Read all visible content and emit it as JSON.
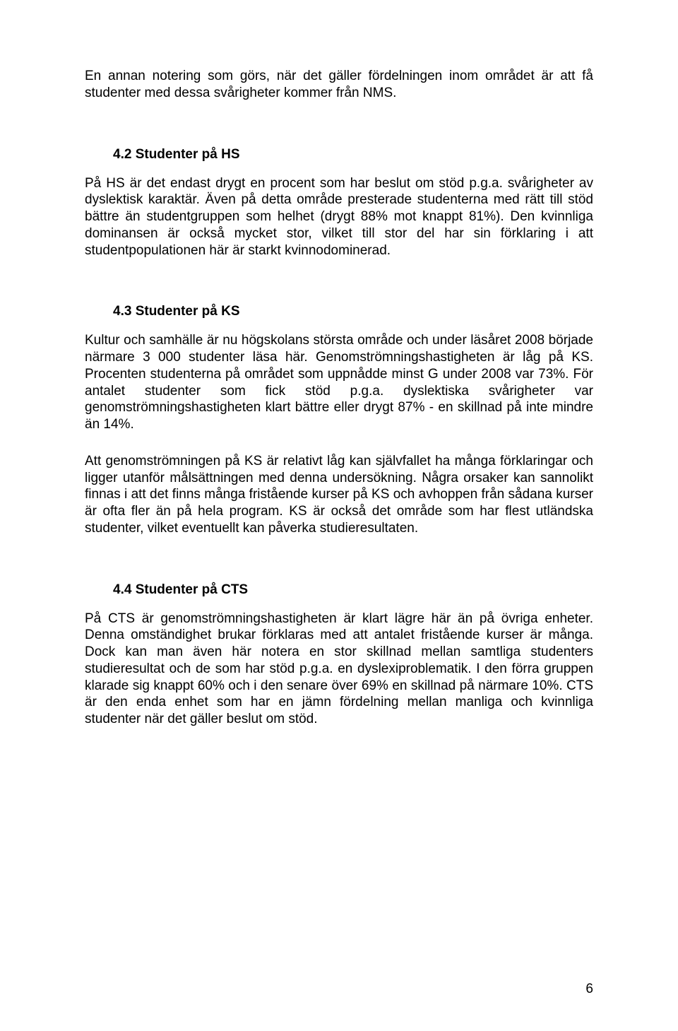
{
  "paragraphs": {
    "p1": "En annan notering som görs, när det gäller fördelningen inom området är att få studenter med dessa svårigheter kommer från NMS."
  },
  "sections": {
    "s42": {
      "heading": "4.2 Studenter på HS",
      "body": "På HS är det endast drygt en procent som har beslut om stöd p.g.a. svårigheter av dyslektisk karaktär. Även på detta område presterade studenterna med rätt till stöd bättre än studentgruppen som helhet (drygt 88% mot knappt 81%). Den kvinnliga dominansen är också mycket stor, vilket till stor del har sin förklaring i att studentpopulationen här är starkt kvinnodominerad."
    },
    "s43": {
      "heading": "4.3 Studenter på KS",
      "body1": "Kultur och samhälle är nu högskolans största område och under läsåret 2008 började närmare 3 000 studenter läsa här. Genomströmningshastigheten är låg på KS. Procenten studenterna på området som uppnådde minst G under 2008 var 73%. För antalet studenter som fick stöd p.g.a. dyslektiska svårigheter var genomströmningshastigheten klart bättre eller drygt 87% - en skillnad på inte mindre än 14%.",
      "body2": "Att genomströmningen på KS är relativt låg kan självfallet ha många förklaringar och ligger utanför målsättningen med denna undersökning. Några orsaker kan sannolikt finnas i att det finns många fristående kurser på KS och avhoppen från sådana kurser är ofta fler än på hela program. KS är också det område som har flest utländska studenter, vilket eventuellt kan påverka studieresultaten."
    },
    "s44": {
      "heading": "4.4 Studenter på CTS",
      "body": "På CTS är genomströmningshastigheten är klart lägre här än på övriga enheter. Denna omständighet brukar förklaras med att antalet fristående kurser är många. Dock kan man även här notera en stor skillnad mellan samtliga studenters studieresultat och de som har stöd p.g.a. en dyslexiproblematik. I den förra gruppen klarade sig knappt 60% och i den senare över 69% en skillnad på närmare 10%. CTS är den enda enhet som har en jämn fördelning mellan manliga och kvinnliga studenter när det gäller beslut om stöd."
    }
  },
  "pageNumber": "6"
}
